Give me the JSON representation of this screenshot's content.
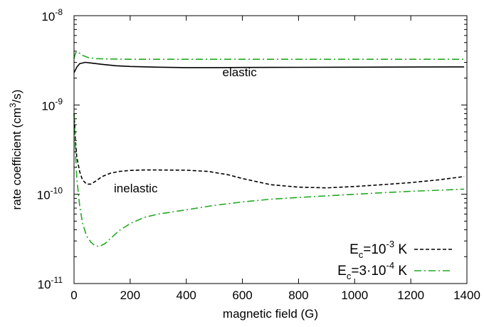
{
  "chart_data": {
    "type": "line",
    "xlabel": "magnetic field (G)",
    "ylabel": "rate coefficient (cm3/s)",
    "xlim": [
      0,
      1400
    ],
    "ylim": [
      1e-11,
      1e-08
    ],
    "yscale": "log",
    "grid": false,
    "legend_position": "bottom-right",
    "x_ticks": [
      0,
      200,
      400,
      600,
      800,
      1000,
      1200,
      1400
    ],
    "y_ticks": [
      {
        "value": 1e-11,
        "mantissa": "10",
        "exponent": "-11"
      },
      {
        "value": 1e-10,
        "mantissa": "10",
        "exponent": "-10"
      },
      {
        "value": 1e-09,
        "mantissa": "10",
        "exponent": "-9"
      },
      {
        "value": 1e-08,
        "mantissa": "10",
        "exponent": "-8"
      }
    ],
    "annotations": [
      {
        "text": "elastic",
        "x": 590,
        "y": 2.1e-09
      },
      {
        "text": "inelastic",
        "x": 220,
        "y": 1.05e-10
      }
    ],
    "series": [
      {
        "name": "E_c=10^-3 K",
        "legend": {
          "prefix": "E",
          "sub": "c",
          "mid": "=10",
          "sup": "-3",
          "suffix": " K"
        },
        "group": "elastic",
        "color": "#000000",
        "dash": "solid",
        "in_legend": false,
        "x": [
          0,
          10,
          20,
          40,
          60,
          100,
          150,
          200,
          300,
          400,
          500,
          600,
          800,
          1000,
          1200,
          1390
        ],
        "y": [
          2.3e-09,
          2.65e-09,
          2.9e-09,
          3e-09,
          2.95e-09,
          2.85e-09,
          2.75e-09,
          2.7e-09,
          2.65e-09,
          2.62e-09,
          2.62e-09,
          2.63e-09,
          2.64e-09,
          2.65e-09,
          2.66e-09,
          2.67e-09
        ]
      },
      {
        "name": "E_c=3·10^-4 K",
        "legend": {
          "prefix": "E",
          "sub": "c",
          "mid": "=3·10",
          "sup": "-4",
          "suffix": " K"
        },
        "group": "elastic",
        "color": "#22aa22",
        "dash": "dashdot",
        "in_legend": false,
        "x": [
          0,
          5,
          10,
          20,
          30,
          50,
          80,
          120,
          200,
          400,
          600,
          800,
          1000,
          1200,
          1390
        ],
        "y": [
          3.3e-09,
          3.8e-09,
          3.95e-09,
          3.8e-09,
          3.6e-09,
          3.4e-09,
          3.3e-09,
          3.27e-09,
          3.25e-09,
          3.25e-09,
          3.25e-09,
          3.25e-09,
          3.25e-09,
          3.25e-09,
          3.25e-09
        ]
      },
      {
        "name": "E_c=10^-3 K",
        "legend": {
          "prefix": "E",
          "sub": "c",
          "mid": "=10",
          "sup": "-3",
          "suffix": " K"
        },
        "group": "inelastic",
        "color": "#000000",
        "dash": "dashed",
        "in_legend": true,
        "x": [
          0,
          5,
          10,
          20,
          30,
          45,
          60,
          80,
          100,
          130,
          160,
          200,
          250,
          300,
          400,
          480,
          550,
          600,
          700,
          800,
          900,
          1000,
          1100,
          1200,
          1300,
          1390
        ],
        "y": [
          8e-10,
          4e-10,
          2.6e-10,
          1.8e-10,
          1.45e-10,
          1.3e-10,
          1.3e-10,
          1.42e-10,
          1.58e-10,
          1.72e-10,
          1.8e-10,
          1.85e-10,
          1.87e-10,
          1.87e-10,
          1.86e-10,
          1.8e-10,
          1.65e-10,
          1.5e-10,
          1.28e-10,
          1.2e-10,
          1.18e-10,
          1.22e-10,
          1.28e-10,
          1.35e-10,
          1.45e-10,
          1.58e-10
        ]
      },
      {
        "name": "E_c=3·10^-4 K",
        "legend": {
          "prefix": "E",
          "sub": "c",
          "mid": "=3·10",
          "sup": "-4",
          "suffix": " K"
        },
        "group": "inelastic",
        "color": "#22aa22",
        "dash": "dashdot",
        "in_legend": true,
        "x": [
          0,
          5,
          10,
          20,
          30,
          45,
          60,
          75,
          90,
          110,
          130,
          160,
          200,
          250,
          300,
          400,
          500,
          600,
          700,
          800,
          900,
          1000,
          1100,
          1200,
          1300,
          1390
        ],
        "y": [
          8e-10,
          3e-10,
          1.5e-10,
          7.5e-11,
          4.8e-11,
          3.4e-11,
          2.9e-11,
          2.65e-11,
          2.6e-11,
          2.8e-11,
          3.2e-11,
          3.9e-11,
          4.7e-11,
          5.5e-11,
          6e-11,
          6.7e-11,
          7.5e-11,
          8.2e-11,
          8.8e-11,
          9.2e-11,
          9.6e-11,
          1e-10,
          1.04e-10,
          1.08e-10,
          1.11e-10,
          1.14e-10
        ]
      }
    ]
  }
}
